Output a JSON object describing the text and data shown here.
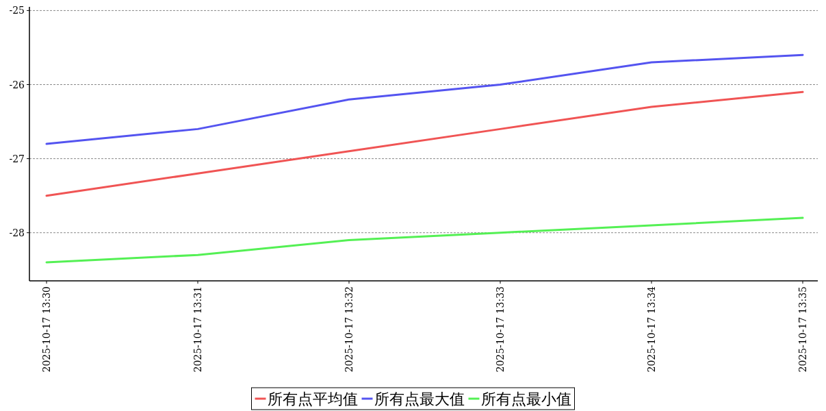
{
  "chart_data": {
    "type": "line",
    "categories": [
      "2025-10-17 13:30",
      "2025-10-17 13:31",
      "2025-10-17 13:32",
      "2025-10-17 13:33",
      "2025-10-17 13:34",
      "2025-10-17 13:35"
    ],
    "series": [
      {
        "name": "所有点平均值",
        "color": "#f05454",
        "values": [
          -27.5,
          -27.2,
          -26.9,
          -26.6,
          -26.3,
          -26.1
        ]
      },
      {
        "name": "所有点最大值",
        "color": "#5454f0",
        "values": [
          -26.8,
          -26.6,
          -26.2,
          -26.0,
          -25.7,
          -25.6
        ]
      },
      {
        "name": "所有点最小值",
        "color": "#54f054",
        "values": [
          -28.4,
          -28.3,
          -28.1,
          -28.0,
          -27.9,
          -27.8
        ]
      }
    ],
    "ylim": [
      -28.65,
      -24.95
    ],
    "yticks": [
      -28,
      -27,
      -26,
      -25
    ],
    "grid": "y",
    "legend": "bottom",
    "line_style": "solid",
    "marker": "none"
  }
}
